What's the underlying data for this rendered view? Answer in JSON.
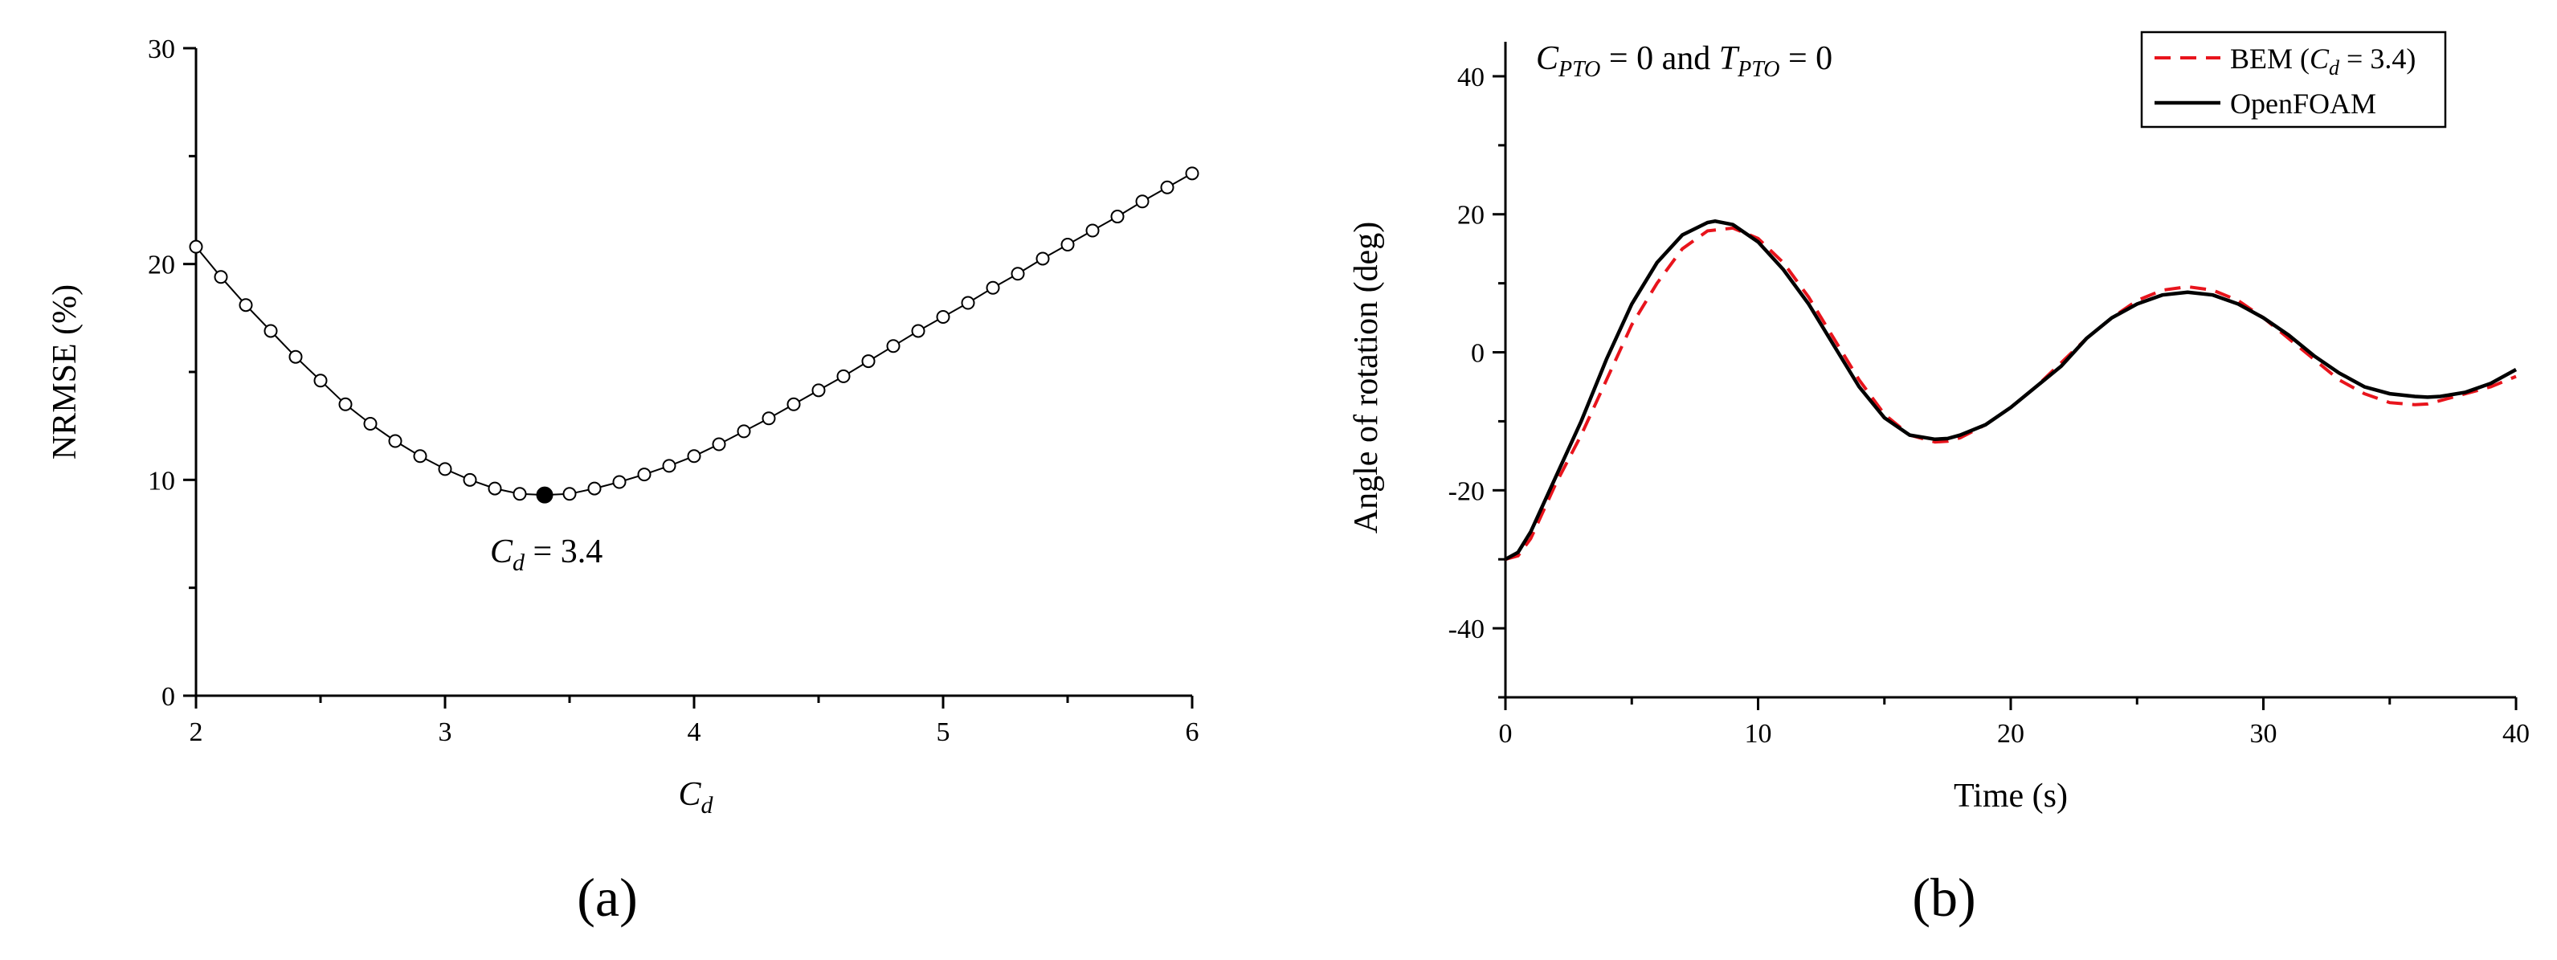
{
  "chart_data": [
    {
      "panel_label": "(a)",
      "type": "line",
      "xlabel": "Cd",
      "ylabel": "NRMSE (%)",
      "xlim": [
        2,
        6
      ],
      "ylim": [
        0,
        30
      ],
      "xticks": [
        2,
        3,
        4,
        5,
        6
      ],
      "yticks": [
        0,
        10,
        20,
        30
      ],
      "grid": false,
      "series": [
        {
          "marker": "open-circle",
          "x": [
            2.0,
            2.1,
            2.2,
            2.3,
            2.4,
            2.5,
            2.6,
            2.7,
            2.8,
            2.9,
            3.0,
            3.1,
            3.2,
            3.3,
            3.4,
            3.5,
            3.6,
            3.7,
            3.8,
            3.9,
            4.0,
            4.1,
            4.2,
            4.3,
            4.4,
            4.5,
            4.6,
            4.7,
            4.8,
            4.9,
            5.0,
            5.1,
            5.2,
            5.3,
            5.4,
            5.5,
            5.6,
            5.7,
            5.8,
            5.9,
            6.0
          ],
          "y": [
            20.8,
            19.4,
            18.1,
            16.9,
            15.7,
            14.6,
            13.5,
            12.6,
            11.8,
            11.1,
            10.5,
            10.0,
            9.6,
            9.35,
            9.3,
            9.35,
            9.6,
            9.9,
            10.25,
            10.65,
            11.1,
            11.65,
            12.25,
            12.85,
            13.5,
            14.15,
            14.8,
            15.5,
            16.2,
            16.9,
            17.55,
            18.2,
            18.9,
            19.55,
            20.25,
            20.9,
            21.55,
            22.2,
            22.9,
            23.55,
            24.2
          ]
        }
      ],
      "highlight": {
        "x": 3.4,
        "y": 9.3,
        "label_var": "C",
        "label_sub": "d",
        "label_rest": " = 3.4"
      }
    },
    {
      "panel_label": "(b)",
      "type": "line",
      "xlabel": "Time (s)",
      "ylabel": "Angle of rotation (deg)",
      "xlim": [
        0,
        40
      ],
      "ylim": [
        -50,
        45
      ],
      "xticks": [
        0,
        10,
        20,
        30,
        40
      ],
      "yticks": [
        -40,
        -20,
        0,
        20,
        40
      ],
      "grid": false,
      "legend_position": "top-right",
      "annotation": {
        "v1": "C",
        "s1": "PTO",
        "mid": " = 0 and ",
        "v2": "T",
        "s2": "PTO",
        "end": " = 0"
      },
      "series": [
        {
          "name": "BEM (Cd = 3.4)",
          "legend": {
            "pre": "BEM (",
            "var": "C",
            "sub": "d",
            "post": " = 3.4)"
          },
          "color": "#e8141c",
          "style": "dashed",
          "x": [
            0,
            0.5,
            1,
            2,
            3,
            4,
            5,
            6,
            7,
            8,
            9,
            10,
            11,
            12,
            13,
            14,
            15,
            16,
            17,
            17.5,
            18,
            19,
            20,
            21,
            22,
            23,
            24,
            25,
            26,
            27,
            28,
            29,
            30,
            31,
            32,
            33,
            34,
            35,
            36,
            36.5,
            37,
            38,
            39,
            40
          ],
          "y": [
            -30,
            -29.5,
            -27,
            -19,
            -12,
            -4,
            4,
            10,
            15,
            17.6,
            18,
            16.5,
            13,
            8,
            2,
            -4,
            -9,
            -12,
            -13,
            -12.9,
            -12.4,
            -10.5,
            -8,
            -5,
            -1.5,
            2,
            5,
            7.5,
            9,
            9.5,
            9,
            7.5,
            5,
            2,
            -1,
            -4,
            -6,
            -7.3,
            -7.6,
            -7.5,
            -7,
            -6,
            -5,
            -3.5
          ]
        },
        {
          "name": "OpenFOAM",
          "color": "#000000",
          "style": "solid",
          "x": [
            0,
            0.5,
            1,
            2,
            3,
            4,
            5,
            6,
            7,
            8,
            8.3,
            9,
            10,
            11,
            12,
            13,
            14,
            15,
            16,
            17,
            17.5,
            18,
            19,
            20,
            21,
            22,
            23,
            24,
            25,
            26,
            27,
            28,
            29,
            30,
            31,
            32,
            33,
            34,
            35,
            36,
            36.5,
            37,
            38,
            39,
            40
          ],
          "y": [
            -30,
            -29,
            -26,
            -18,
            -10,
            -1,
            7,
            13,
            17,
            18.8,
            19,
            18.5,
            16,
            12,
            7,
            1,
            -5,
            -9.5,
            -12,
            -12.6,
            -12.5,
            -12,
            -10.5,
            -8,
            -5,
            -2,
            2,
            5,
            7,
            8.3,
            8.7,
            8.3,
            7,
            5,
            2.5,
            -0.5,
            -3,
            -5,
            -6,
            -6.4,
            -6.5,
            -6.4,
            -5.8,
            -4.5,
            -2.5
          ]
        }
      ]
    }
  ]
}
